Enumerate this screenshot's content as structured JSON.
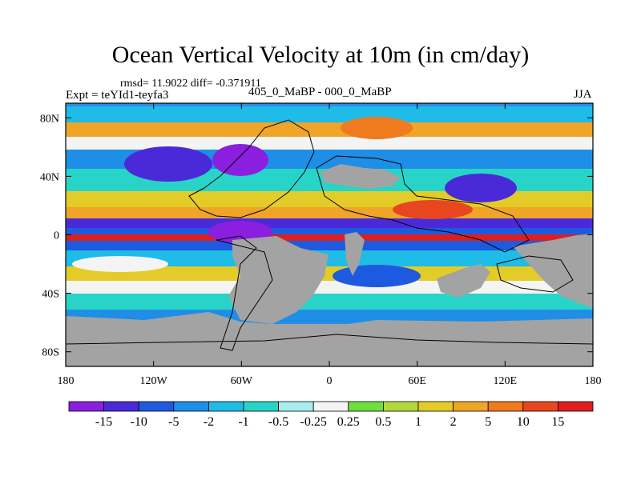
{
  "chart_data": {
    "type": "heatmap",
    "title": "Ocean Vertical Velocity at 10m (in cm/day)",
    "stats_label": "rmsd= 11.9022 diff= -0.371911",
    "experiment_label": "Expt = teYId1-teyfa3",
    "difference_label": "405_0_MaBP - 000_0_MaBP",
    "season": "JJA",
    "x_ticks": [
      {
        "lon": -180,
        "label": "180"
      },
      {
        "lon": -120,
        "label": "120W"
      },
      {
        "lon": -60,
        "label": "60W"
      },
      {
        "lon": 0,
        "label": "0"
      },
      {
        "lon": 60,
        "label": "60E"
      },
      {
        "lon": 120,
        "label": "120E"
      },
      {
        "lon": 180,
        "label": "180"
      }
    ],
    "y_ticks": [
      {
        "lat": 80,
        "label": "80N"
      },
      {
        "lat": 40,
        "label": "40N"
      },
      {
        "lat": 0,
        "label": "0"
      },
      {
        "lat": -40,
        "label": "40S"
      },
      {
        "lat": -80,
        "label": "80S"
      }
    ],
    "xlim": [
      -180,
      180
    ],
    "ylim": [
      -90,
      90
    ],
    "colorbar": {
      "labels": [
        "-15",
        "-10",
        "-5",
        "-2",
        "-1",
        "-0.5",
        "-0.25",
        "0.25",
        "0.5",
        "1",
        "2",
        "5",
        "10",
        "15"
      ],
      "colors": [
        "#8a1fe0",
        "#4a2ad8",
        "#1e5ae0",
        "#1e8ee6",
        "#1ebce6",
        "#28d4c8",
        "#a8ecee",
        "#f4f4f4",
        "#6ce03c",
        "#b4d83c",
        "#e4cc28",
        "#f0a428",
        "#f07a1e",
        "#e8461e",
        "#dc1e1e"
      ]
    },
    "land_color": "#a3a3a3"
  }
}
